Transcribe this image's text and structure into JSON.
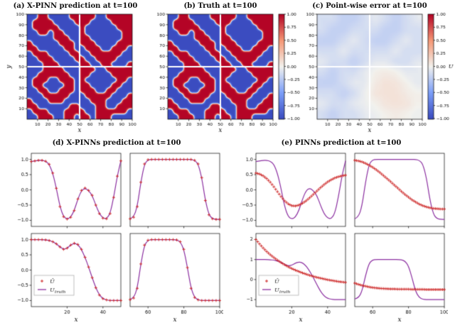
{
  "page": {
    "background": "#ffffff"
  },
  "titles": {
    "a": "(a) X-PINN prediction at t=100",
    "b": "(b) Truth at t=100",
    "c": "(c) Point-wise error at t=100",
    "d": "(d) X-PINNs prediction at t=100",
    "e": "(e) PINNs prediction at t=100"
  },
  "colors": {
    "heat_red_max": "#b40426",
    "heat_blue_min": "#3b4cc0",
    "heat_mid": "#f2f2ee",
    "truth_line": "#8b2fa0",
    "pred_marker": "#cc2222"
  },
  "chart_data": [
    {
      "id": "a",
      "type": "heatmap",
      "title": "(a) X-PINN prediction at t=100",
      "xlabel": "x",
      "ylabel": "y",
      "xlim": [
        0,
        100
      ],
      "ylim": [
        0,
        100
      ],
      "xticks": [
        10,
        20,
        30,
        40,
        50,
        60,
        70,
        80,
        90,
        100
      ],
      "yticks": [
        10,
        20,
        30,
        40,
        50,
        60,
        70,
        80,
        90,
        100
      ],
      "vmin": -1,
      "vmax": 1,
      "colormap": "coolwarm",
      "colorbar": false,
      "subdomain_split_lines": [
        50,
        50
      ],
      "cell_values": {
        "R": 1,
        "B": -1
      },
      "rows": [
        "BBRRBBBBRRRRRBBRRRRR",
        "BRRRRBBBBRRRBBBBRRRR",
        "BRRRRRBBBBRBBBBBBRRR",
        "BBRRBRRBBBRBBBBBBBRR",
        "BBBBBRRRBBRRBBBBBBRR",
        "RBBBBBRRRBRRRBBBBRRR",
        "RRBBBBBRRBBRRRBBRRRB",
        "BRRRBBBBRRBBRRRRRRBB",
        "BBRRRBBBBRRBBRRRRBBB",
        "BBBRRRBBBBRRBBRRBBBR",
        "BBBRRRRBBBRRRBBRRRRR",
        "BBRRRRRRBBRRBBBBRRRR",
        "BRRRBBRRRBRBBBBBBRRB",
        "BRRBBBBRRBRRBBBBRRBB",
        "BBRRBBRRRBRRRBBRRBBB",
        "BBBRRRRRBBBRRRRRBBBR",
        "RBBBRRRBBBBBRRRBBBRR",
        "RRBBBBBBRRBBBRRBBRRR",
        "BRRRBBBRRRRBBRRRRRRB",
        "BBRRRBBRRBRRBRRRBBBB"
      ]
    },
    {
      "id": "b",
      "type": "heatmap",
      "title": "(b) Truth at t=100",
      "xlabel": "x",
      "xlim": [
        0,
        100
      ],
      "ylim": [
        0,
        100
      ],
      "xticks": [
        10,
        20,
        30,
        40,
        50,
        60,
        70,
        80,
        90,
        100
      ],
      "yticks": [
        10,
        20,
        30,
        40,
        50,
        60,
        70,
        80,
        90,
        100
      ],
      "vmin": -1,
      "vmax": 1,
      "colormap": "coolwarm",
      "colorbar": true,
      "colorbar_ticks": [
        [
          "1.00",
          1
        ],
        [
          "0.75",
          0.75
        ],
        [
          "0.50",
          0.5
        ],
        [
          "0.25",
          0.25
        ],
        [
          "0.00",
          0
        ],
        [
          "−0.25",
          -0.25
        ],
        [
          "−0.50",
          -0.5
        ],
        [
          "−0.75",
          -0.75
        ],
        [
          "−1.00",
          -1
        ]
      ],
      "subdomain_split_lines": [
        50,
        50
      ],
      "rows": "same-as-panel-a"
    },
    {
      "id": "c",
      "type": "heatmap",
      "title": "(c) Point-wise error at t=100",
      "xlabel": "x",
      "xlim": [
        0,
        100
      ],
      "ylim": [
        0,
        100
      ],
      "xticks": [
        10,
        20,
        30,
        40,
        50,
        60,
        70,
        80,
        90,
        100
      ],
      "yticks": [
        10,
        20,
        30,
        40,
        50,
        60,
        70,
        80,
        90,
        100
      ],
      "vmin": -1,
      "vmax": 1,
      "colormap": "coolwarm",
      "colorbar": true,
      "colorbar_label": "U",
      "colorbar_ticks": [
        [
          "1.00",
          1
        ],
        [
          "0.75",
          0.75
        ],
        [
          "0.50",
          0.5
        ],
        [
          "0.25",
          0.25
        ],
        [
          "0.00",
          0
        ],
        [
          "−0.25",
          -0.25
        ],
        [
          "−0.50",
          -0.5
        ],
        [
          "−0.75",
          -0.75
        ],
        [
          "−1.00",
          -1
        ]
      ],
      "subdomain_split_lines": [
        50,
        50
      ],
      "values": [
        [
          -0.12,
          -0.12,
          -0.2,
          -0.2,
          -0.12,
          -0.05,
          -0.12,
          -0.2,
          -0.12,
          -0.05
        ],
        [
          -0.12,
          -0.2,
          -0.2,
          -0.12,
          -0.12,
          -0.12,
          -0.2,
          -0.2,
          -0.12,
          -0.12
        ],
        [
          -0.2,
          -0.2,
          -0.12,
          -0.05,
          -0.12,
          -0.2,
          -0.2,
          -0.12,
          -0.05,
          -0.12
        ],
        [
          -0.12,
          -0.12,
          -0.05,
          -0.12,
          -0.12,
          -0.12,
          -0.12,
          -0.05,
          -0.12,
          -0.12
        ],
        [
          -0.05,
          -0.12,
          -0.12,
          -0.2,
          -0.12,
          -0.05,
          -0.05,
          -0.12,
          -0.12,
          -0.05
        ],
        [
          -0.12,
          -0.2,
          -0.12,
          -0.12,
          -0.05,
          0.02,
          0.05,
          0.02,
          -0.05,
          -0.05
        ],
        [
          -0.2,
          -0.2,
          -0.12,
          -0.05,
          -0.05,
          0.05,
          0.1,
          0.08,
          0.02,
          -0.05
        ],
        [
          -0.12,
          -0.12,
          -0.2,
          -0.12,
          -0.02,
          0.08,
          0.1,
          0.1,
          0.05,
          0.02
        ],
        [
          -0.05,
          -0.12,
          -0.12,
          -0.05,
          -0.02,
          0.02,
          0.08,
          0.1,
          0.08,
          0.02
        ],
        [
          -0.12,
          -0.2,
          -0.12,
          -0.12,
          -0.05,
          -0.02,
          0.02,
          0.05,
          0.02,
          -0.02
        ]
      ]
    },
    {
      "id": "d",
      "type": "line-grid",
      "title": "(d) X-PINNs prediction at t=100",
      "xlabel": "x",
      "series_style": {
        "pred": {
          "label": "Û",
          "marker": "+",
          "color": "#cc2222"
        },
        "truth": {
          "label": "U_truth",
          "marker": "line",
          "color": "#8b2fa0"
        }
      },
      "subplots": [
        {
          "x0": 0,
          "x1": 50,
          "xticks": [
            20,
            40
          ],
          "yticks": [
            [
              "1.0",
              1
            ],
            [
              "0.5",
              0.5
            ],
            [
              "0.0",
              0
            ],
            [
              "−0.5",
              -0.5
            ],
            [
              "−1.0",
              -1
            ]
          ],
          "ylim": [
            -1.2,
            1.2
          ],
          "truth": [
            0.93,
            0.95,
            0.97,
            0.97,
            0.94,
            0.84,
            0.55,
            0.05,
            -0.55,
            -0.88,
            -0.96,
            -0.9,
            -0.68,
            -0.3,
            -0.02,
            0.06,
            -0.02,
            -0.18,
            -0.5,
            -0.78,
            -0.93,
            -0.95,
            -0.78,
            -0.25,
            0.45,
            0.95
          ],
          "pred": "same-as-truth"
        },
        {
          "x0": 50,
          "x1": 100,
          "xticks": [
            60,
            80,
            100
          ],
          "yticks": [],
          "ylim": [
            -1.2,
            1.2
          ],
          "truth": [
            -0.95,
            -0.9,
            -0.55,
            0.25,
            0.85,
            0.99,
            1.0,
            1.0,
            1.0,
            1.0,
            1.0,
            1.0,
            1.0,
            1.0,
            1.0,
            1.0,
            1.0,
            1.0,
            0.97,
            0.85,
            0.4,
            -0.35,
            -0.82,
            -0.95,
            -0.97,
            -0.97
          ],
          "pred": "same-as-truth"
        },
        {
          "x0": 0,
          "x1": 50,
          "xticks": [
            20,
            40
          ],
          "yticks": [
            [
              "1.0",
              1
            ],
            [
              "0.5",
              0.5
            ],
            [
              "0.0",
              0
            ],
            [
              "−0.5",
              -0.5
            ],
            [
              "−1.0",
              -1
            ]
          ],
          "ylim": [
            -1.2,
            1.2
          ],
          "legend": true,
          "truth": [
            1.0,
            1.0,
            1.0,
            1.0,
            0.99,
            0.97,
            0.93,
            0.86,
            0.76,
            0.68,
            0.72,
            0.82,
            0.88,
            0.84,
            0.68,
            0.42,
            0.1,
            -0.25,
            -0.58,
            -0.82,
            -0.94,
            -0.98,
            -1.0,
            -1.0,
            -1.0,
            -1.0
          ],
          "pred": "same-as-truth"
        },
        {
          "x0": 50,
          "x1": 100,
          "xticks": [
            60,
            80,
            100
          ],
          "yticks": [],
          "ylim": [
            -1.2,
            1.2
          ],
          "truth": [
            -0.97,
            -0.92,
            -0.6,
            0.2,
            0.82,
            0.98,
            1.0,
            1.0,
            1.0,
            1.0,
            1.0,
            1.0,
            1.0,
            0.99,
            0.93,
            0.68,
            0.08,
            -0.6,
            -0.9,
            -0.98,
            -1.0,
            -1.0,
            -1.0,
            -1.0,
            -1.0,
            -1.0
          ],
          "pred": "same-as-truth"
        }
      ]
    },
    {
      "id": "e",
      "type": "line-grid",
      "title": "(e) PINNs prediction at t=100",
      "xlabel": "x",
      "marker_upsample": 2,
      "series_style": {
        "pred": {
          "label": "Û",
          "marker": "+",
          "color": "#cc2222"
        },
        "truth": {
          "label": "U_truth",
          "marker": "line",
          "color": "#8b2fa0"
        }
      },
      "subplots": [
        {
          "x0": 0,
          "x1": 50,
          "xticks": [
            20,
            40
          ],
          "yticks": [
            [
              "1.0",
              1
            ],
            [
              "0.5",
              0.5
            ],
            [
              "0.0",
              0
            ],
            [
              "−0.5",
              -0.5
            ],
            [
              "−1.0",
              -1
            ]
          ],
          "ylim": [
            -1.2,
            1.2
          ],
          "truth": "same-as-d",
          "pred": [
            0.55,
            0.52,
            0.46,
            0.37,
            0.25,
            0.1,
            -0.06,
            -0.22,
            -0.36,
            -0.46,
            -0.52,
            -0.53,
            -0.5,
            -0.44,
            -0.36,
            -0.26,
            -0.15,
            -0.04,
            0.07,
            0.17,
            0.26,
            0.33,
            0.39,
            0.43,
            0.46,
            0.48
          ]
        },
        {
          "x0": 50,
          "x1": 100,
          "xticks": [
            60,
            80,
            100
          ],
          "yticks": [],
          "ylim": [
            -1.2,
            1.2
          ],
          "truth": "same-as-d",
          "pred": [
            0.97,
            0.95,
            0.92,
            0.87,
            0.81,
            0.74,
            0.66,
            0.57,
            0.47,
            0.37,
            0.27,
            0.16,
            0.06,
            -0.05,
            -0.15,
            -0.24,
            -0.33,
            -0.4,
            -0.47,
            -0.52,
            -0.56,
            -0.59,
            -0.61,
            -0.62,
            -0.63,
            -0.63
          ]
        },
        {
          "x0": 0,
          "x1": 50,
          "xticks": [
            20,
            40
          ],
          "yticks": [
            [
              "2",
              2
            ],
            [
              "1",
              1
            ],
            [
              "0",
              0
            ],
            [
              "−1",
              -1
            ]
          ],
          "ylim": [
            -1.35,
            2.3
          ],
          "legend": true,
          "truth": "same-as-d",
          "pred": [
            2.0,
            1.78,
            1.58,
            1.4,
            1.24,
            1.1,
            0.97,
            0.85,
            0.74,
            0.64,
            0.55,
            0.47,
            0.4,
            0.33,
            0.27,
            0.21,
            0.16,
            0.11,
            0.07,
            0.03,
            -0.01,
            -0.04,
            -0.07,
            -0.1,
            -0.12,
            -0.14
          ]
        },
        {
          "x0": 50,
          "x1": 100,
          "xticks": [
            60,
            80,
            100
          ],
          "yticks": [],
          "ylim": [
            -1.35,
            2.3
          ],
          "truth": "same-as-d",
          "pred": [
            -0.18,
            -0.24,
            -0.29,
            -0.33,
            -0.37,
            -0.4,
            -0.42,
            -0.44,
            -0.45,
            -0.46,
            -0.47,
            -0.47,
            -0.48,
            -0.48,
            -0.48,
            -0.48,
            -0.49,
            -0.49,
            -0.49,
            -0.49,
            -0.5,
            -0.5,
            -0.5,
            -0.5,
            -0.5,
            -0.5
          ]
        }
      ]
    }
  ]
}
